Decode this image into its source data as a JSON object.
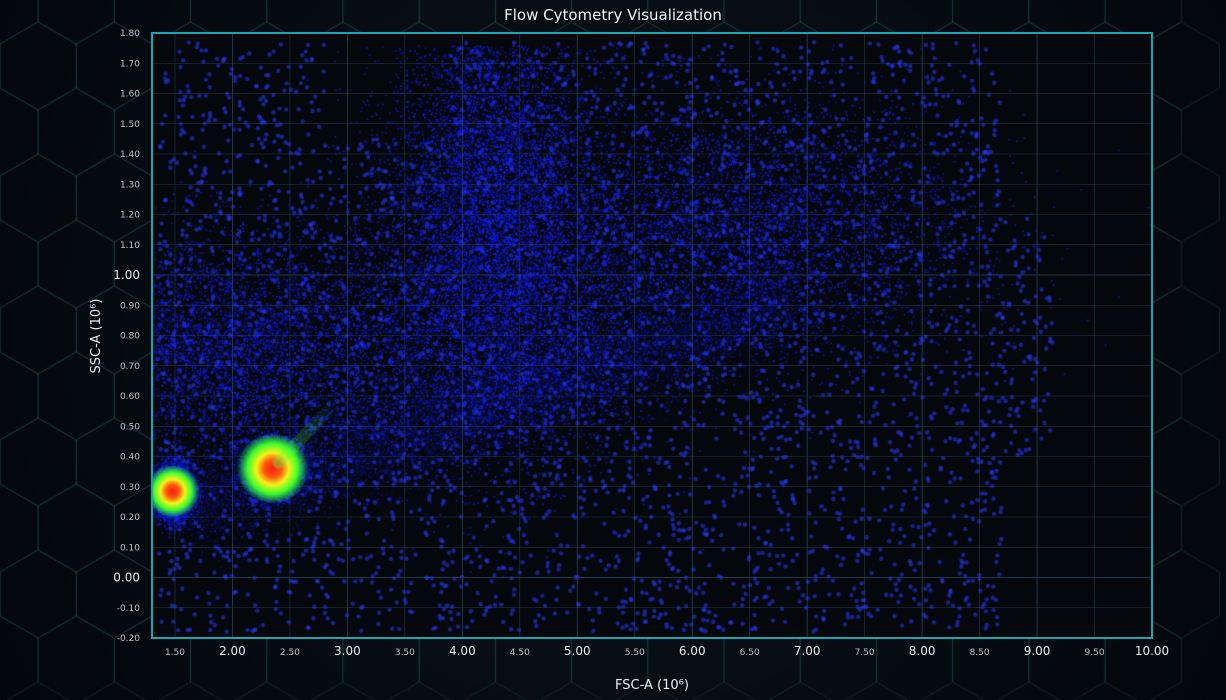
{
  "chart_data": {
    "type": "heatmap",
    "subtype": "density-scatter",
    "title": "Flow Cytometry Visualization",
    "xlabel": "FSC-A (10⁶)",
    "ylabel": "SSC-A (10⁶)",
    "xlim": [
      1.3,
      10.0
    ],
    "ylim": [
      -0.2,
      1.8
    ],
    "x_ticks": [
      {
        "v": 1.5,
        "label": "1.50",
        "major": false
      },
      {
        "v": 2.0,
        "label": "2.00",
        "major": true
      },
      {
        "v": 2.5,
        "label": "2.50",
        "major": false
      },
      {
        "v": 3.0,
        "label": "3.00",
        "major": true
      },
      {
        "v": 3.5,
        "label": "3.50",
        "major": false
      },
      {
        "v": 4.0,
        "label": "4.00",
        "major": true
      },
      {
        "v": 4.5,
        "label": "4.50",
        "major": false
      },
      {
        "v": 5.0,
        "label": "5.00",
        "major": true
      },
      {
        "v": 5.5,
        "label": "5.50",
        "major": false
      },
      {
        "v": 6.0,
        "label": "6.00",
        "major": true
      },
      {
        "v": 6.5,
        "label": "6.50",
        "major": false
      },
      {
        "v": 7.0,
        "label": "7.00",
        "major": true
      },
      {
        "v": 7.5,
        "label": "7.50",
        "major": false
      },
      {
        "v": 8.0,
        "label": "8.00",
        "major": true
      },
      {
        "v": 8.5,
        "label": "8.50",
        "major": false
      },
      {
        "v": 9.0,
        "label": "9.00",
        "major": true
      },
      {
        "v": 9.5,
        "label": "9.50",
        "major": false
      },
      {
        "v": 10.0,
        "label": "10.00",
        "major": true
      }
    ],
    "y_ticks": [
      {
        "v": 1.8,
        "label": "1.80",
        "major": false
      },
      {
        "v": 1.7,
        "label": "1.70",
        "major": false
      },
      {
        "v": 1.6,
        "label": "1.60",
        "major": false
      },
      {
        "v": 1.5,
        "label": "1.50",
        "major": false
      },
      {
        "v": 1.4,
        "label": "1.40",
        "major": false
      },
      {
        "v": 1.3,
        "label": "1.30",
        "major": false
      },
      {
        "v": 1.2,
        "label": "1.20",
        "major": false
      },
      {
        "v": 1.1,
        "label": "1.10",
        "major": false
      },
      {
        "v": 1.0,
        "label": "1.00",
        "major": true
      },
      {
        "v": 0.9,
        "label": "0.90",
        "major": false
      },
      {
        "v": 0.8,
        "label": "0.80",
        "major": false
      },
      {
        "v": 0.7,
        "label": "0.70",
        "major": false
      },
      {
        "v": 0.6,
        "label": "0.60",
        "major": false
      },
      {
        "v": 0.5,
        "label": "0.50",
        "major": false
      },
      {
        "v": 0.4,
        "label": "0.40",
        "major": false
      },
      {
        "v": 0.3,
        "label": "0.30",
        "major": false
      },
      {
        "v": 0.2,
        "label": "0.20",
        "major": false
      },
      {
        "v": 0.1,
        "label": "0.10",
        "major": false
      },
      {
        "v": 0.0,
        "label": "0.00",
        "major": true
      },
      {
        "v": -0.1,
        "label": "-0.10",
        "major": false
      },
      {
        "v": -0.2,
        "label": "-0.20",
        "major": false
      }
    ],
    "grid": true,
    "legend": "none",
    "populations": [
      {
        "x": 1.48,
        "y": 0.285,
        "sx": 0.09,
        "sy": 0.045,
        "peak": "red"
      },
      {
        "x": 2.35,
        "y": 0.36,
        "sx": 0.12,
        "sy": 0.045,
        "peak": "red"
      },
      {
        "x": 4.25,
        "y": 1.35,
        "sx": 0.45,
        "sy": 0.3,
        "peak": "blue"
      },
      {
        "x": 4.3,
        "y": 0.85,
        "sx": 0.7,
        "sy": 0.25,
        "peak": "blue"
      },
      {
        "x": 6.4,
        "y": 1.15,
        "sx": 1.0,
        "sy": 0.22,
        "peak": "blue"
      },
      {
        "x": 2.0,
        "y": 0.75,
        "sx": 0.8,
        "sy": 0.2,
        "peak": "blue"
      }
    ],
    "colors": {
      "low": "#0a1fe8",
      "mid": "#1a5cff",
      "green": "#3cff2a",
      "yellow": "#f6f21a",
      "high": "#ff1a12",
      "frame": "#1ba6b2",
      "grid": "#1f3a48",
      "background": "#04070b"
    }
  }
}
